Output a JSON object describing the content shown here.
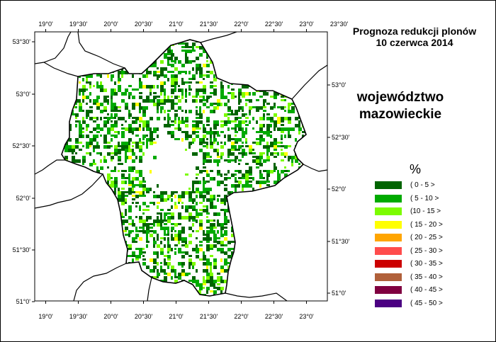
{
  "title": {
    "line1": "Prognoza redukcji plonów",
    "line2": "10 czerwca 2014"
  },
  "region_name": {
    "line1": "województwo",
    "line2": "mazowieckie"
  },
  "axes": {
    "top_longitude_labels": [
      "19°0'",
      "19°30'",
      "20°0'",
      "20°30'",
      "21°0'",
      "21°30'",
      "22°0'",
      "22°30'",
      "23°0'",
      "23°30'"
    ],
    "bottom_longitude_labels": [
      "19°0'",
      "19°30'",
      "20°0'",
      "20°30'",
      "21°0'",
      "21°30'",
      "22°0'",
      "22°30'",
      "23°0'"
    ],
    "left_latitude_labels": [
      "53°30'",
      "53°0'",
      "52°30'",
      "52°0'",
      "51°30'",
      "51°0'"
    ],
    "right_latitude_labels": [
      "53°0'",
      "52°30'",
      "52°0'",
      "51°30'",
      "51°0'"
    ]
  },
  "legend": {
    "unit": "%",
    "classes": [
      {
        "label": "( 0 - 5 >",
        "color": "#006400"
      },
      {
        "label": "( 5 - 10 >",
        "color": "#00aa00"
      },
      {
        "label": "(10 - 15 >",
        "color": "#7cfc00"
      },
      {
        "label": "( 15 - 20 >",
        "color": "#ffff00"
      },
      {
        "label": "( 20 - 25 >",
        "color": "#ffa500"
      },
      {
        "label": "( 25 - 30 >",
        "color": "#ff4c4c"
      },
      {
        "label": "( 30 - 35 >",
        "color": "#cc0000"
      },
      {
        "label": "( 35 - 40 >",
        "color": "#b0603a"
      },
      {
        "label": "( 40 - 45 >",
        "color": "#800040"
      },
      {
        "label": "( 45 - 50 >",
        "color": "#4b0082"
      }
    ]
  }
}
